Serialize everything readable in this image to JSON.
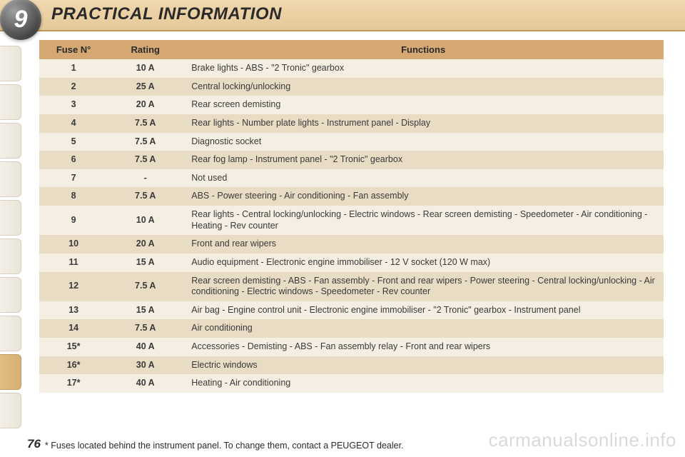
{
  "header": {
    "chapter_num": "9",
    "title": "PRACTICAL INFORMATION"
  },
  "colors": {
    "header_grad_top": "#f0d9b0",
    "header_grad_bot": "#e3c999",
    "th_bg": "#d6a874",
    "row_even": "#f5eee2",
    "row_odd": "#e9dcc5",
    "tab_active": "#d6b075",
    "text": "#2a2a2a"
  },
  "side_tabs": {
    "count": 10,
    "active_index": 8
  },
  "table": {
    "headers": {
      "c1": "Fuse N°",
      "c2": "Rating",
      "c3": "Functions"
    },
    "rows": [
      {
        "fuse": "1",
        "rating": "10 A",
        "func": "Brake lights - ABS - \"2 Tronic\" gearbox"
      },
      {
        "fuse": "2",
        "rating": "25 A",
        "func": "Central locking/unlocking"
      },
      {
        "fuse": "3",
        "rating": "20 A",
        "func": "Rear screen demisting"
      },
      {
        "fuse": "4",
        "rating": "7.5 A",
        "func": "Rear lights - Number plate lights - Instrument panel - Display"
      },
      {
        "fuse": "5",
        "rating": "7.5 A",
        "func": "Diagnostic socket"
      },
      {
        "fuse": "6",
        "rating": "7.5 A",
        "func": "Rear fog lamp - Instrument panel - \"2 Tronic\" gearbox"
      },
      {
        "fuse": "7",
        "rating": "-",
        "func": "Not used"
      },
      {
        "fuse": "8",
        "rating": "7.5 A",
        "func": "ABS - Power steering - Air conditioning - Fan assembly"
      },
      {
        "fuse": "9",
        "rating": "10 A",
        "func": "Rear lights - Central locking/unlocking - Electric windows - Rear screen demisting - Speedometer - Air conditioning - Heating - Rev counter"
      },
      {
        "fuse": "10",
        "rating": "20 A",
        "func": "Front and rear wipers"
      },
      {
        "fuse": "11",
        "rating": "15 A",
        "func": "Audio equipment - Electronic engine immobiliser - 12 V socket (120 W max)"
      },
      {
        "fuse": "12",
        "rating": "7.5 A",
        "func": "Rear screen demisting - ABS - Fan assembly - Front and rear wipers - Power steering - Central locking/unlocking - Air conditioning - Electric windows - Speedometer - Rev counter"
      },
      {
        "fuse": "13",
        "rating": "15 A",
        "func": "Air bag - Engine control unit - Electronic engine immobiliser - \"2 Tronic\" gearbox - Instrument panel"
      },
      {
        "fuse": "14",
        "rating": "7.5 A",
        "func": "Air conditioning"
      },
      {
        "fuse": "15*",
        "rating": "40 A",
        "func": "Accessories - Demisting - ABS - Fan assembly relay - Front and rear wipers"
      },
      {
        "fuse": "16*",
        "rating": "30 A",
        "func": "Electric windows"
      },
      {
        "fuse": "17*",
        "rating": "40 A",
        "func": "Heating - Air conditioning"
      }
    ]
  },
  "footnote": "*  Fuses located behind the instrument panel. To change them, contact a PEUGEOT dealer.",
  "page_number": "76",
  "watermark": "carmanualsonline.info"
}
